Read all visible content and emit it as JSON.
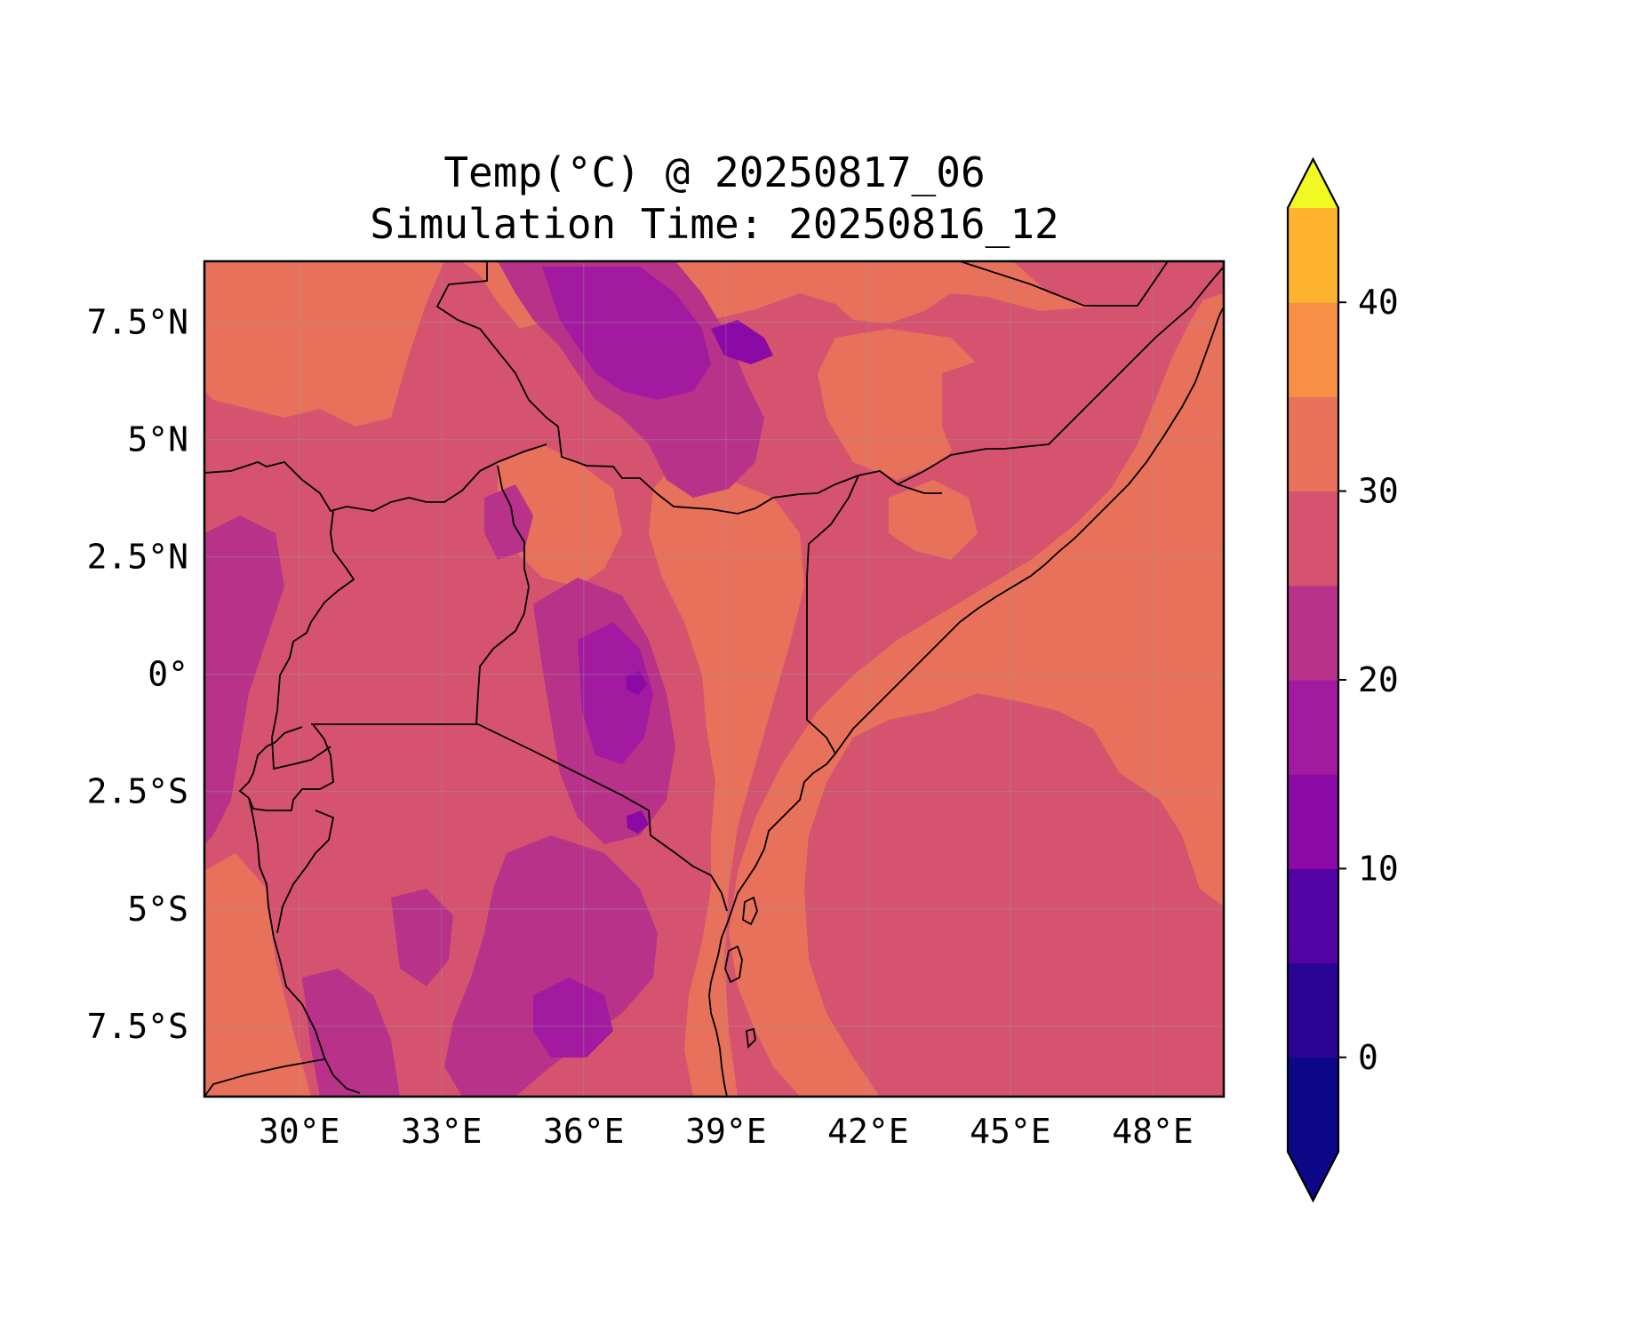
{
  "title_line1": "Temp(°C) @ 20250817_06",
  "title_line2": "Simulation Time: 20250816_12",
  "map": {
    "lon_range": [
      28.0,
      49.5
    ],
    "lat_range": [
      -9.0,
      8.8
    ],
    "lon_ticks": [
      {
        "value": 30,
        "label": "30°E"
      },
      {
        "value": 33,
        "label": "33°E"
      },
      {
        "value": 36,
        "label": "36°E"
      },
      {
        "value": 39,
        "label": "39°E"
      },
      {
        "value": 42,
        "label": "42°E"
      },
      {
        "value": 45,
        "label": "45°E"
      },
      {
        "value": 48,
        "label": "48°E"
      }
    ],
    "lat_ticks": [
      {
        "value": 7.5,
        "label": "7.5°N"
      },
      {
        "value": 5,
        "label": "5°N"
      },
      {
        "value": 2.5,
        "label": "2.5°N"
      },
      {
        "value": 0,
        "label": "0°"
      },
      {
        "value": -2.5,
        "label": "2.5°S"
      },
      {
        "value": -5,
        "label": "5°S"
      },
      {
        "value": -7.5,
        "label": "7.5°S"
      }
    ],
    "gridlines": true
  },
  "colorbar": {
    "colormap": "plasma",
    "extend": "both",
    "levels": [
      -5,
      0,
      5,
      10,
      15,
      20,
      25,
      30,
      35,
      40,
      45
    ],
    "colors": [
      "#0d0887",
      "#2a0593",
      "#5302a3",
      "#8b0aa5",
      "#a21aa0",
      "#b83289",
      "#d5536f",
      "#e8715b",
      "#f79044",
      "#fdb32f",
      "#f3e52b"
    ],
    "under_color": "#0d0887",
    "over_color": "#f0f921",
    "tick_labels": [
      {
        "value": 0,
        "label": "0"
      },
      {
        "value": 10,
        "label": "10"
      },
      {
        "value": 20,
        "label": "20"
      },
      {
        "value": 30,
        "label": "30"
      },
      {
        "value": 40,
        "label": "40"
      }
    ]
  }
}
